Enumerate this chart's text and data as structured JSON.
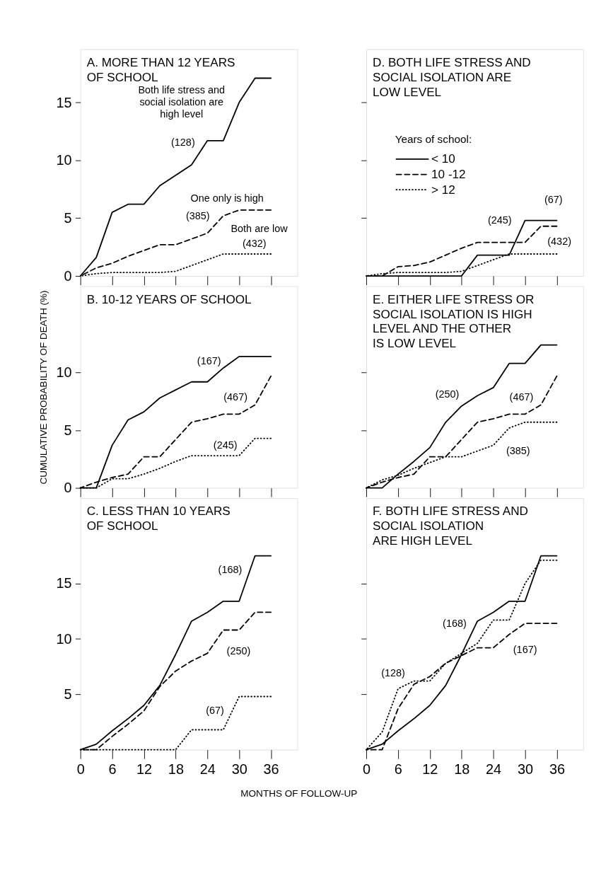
{
  "chart_data": [
    {
      "type": "line",
      "title": "A. MORE THAN 12 YEARS\nOF SCHOOL",
      "x": [
        0,
        3,
        6,
        9,
        12,
        15,
        18,
        21,
        24,
        27,
        30,
        33,
        36
      ],
      "xlim": [
        0,
        41
      ],
      "xticks": [
        0,
        6,
        12,
        18,
        24,
        30,
        36
      ],
      "ylim": [
        0,
        19.6
      ],
      "yticks": [
        0,
        5,
        10,
        15
      ],
      "tick_labels": "y",
      "grid": false,
      "marker": "none",
      "series": [
        {
          "color": "#000000",
          "line_style": "solid",
          "values": [
            0,
            1.6,
            5.5,
            6.2,
            6.2,
            7.8,
            8.7,
            9.6,
            11.7,
            11.7,
            15.0,
            17.1,
            17.1
          ]
        },
        {
          "color": "#000000",
          "line_style": "dashed",
          "values": [
            0,
            0.7,
            1.1,
            1.7,
            2.2,
            2.7,
            2.7,
            3.2,
            3.7,
            5.2,
            5.7,
            5.7,
            5.7
          ]
        },
        {
          "color": "#000000",
          "line_style": "dotted",
          "values": [
            0,
            0.2,
            0.3,
            0.3,
            0.3,
            0.3,
            0.4,
            0.9,
            1.4,
            1.9,
            1.9,
            1.9,
            1.9
          ]
        }
      ],
      "annotations": [
        "Both life stress and\nsocial isolation are\nhigh level",
        "(128)",
        "One only is high",
        "(385)",
        "Both are low",
        "(432)"
      ]
    },
    {
      "type": "line",
      "title": "B. 10-12 YEARS OF SCHOOL",
      "ylabel": "CUMULATIVE PROBABILITY OF DEATH (%)",
      "x": [
        0,
        3,
        6,
        9,
        12,
        15,
        18,
        21,
        24,
        27,
        30,
        33,
        36
      ],
      "xlim": [
        0,
        41
      ],
      "xticks": [
        0,
        6,
        12,
        18,
        24,
        30,
        36
      ],
      "ylim": [
        0,
        17.5
      ],
      "yticks": [
        0,
        5,
        10
      ],
      "tick_labels": "y",
      "grid": false,
      "marker": "none",
      "series": [
        {
          "color": "#000000",
          "line_style": "solid",
          "values": [
            0,
            0,
            3.7,
            5.9,
            6.6,
            7.8,
            8.5,
            9.2,
            9.2,
            10.4,
            11.4,
            11.4,
            11.4
          ]
        },
        {
          "color": "#000000",
          "line_style": "dashed",
          "values": [
            0,
            0.5,
            0.9,
            1.2,
            2.7,
            2.7,
            4.2,
            5.7,
            6.0,
            6.4,
            6.4,
            7.2,
            9.7
          ]
        },
        {
          "color": "#000000",
          "line_style": "dotted",
          "values": [
            0,
            0,
            0.8,
            0.8,
            1.2,
            1.7,
            2.3,
            2.8,
            2.8,
            2.8,
            2.8,
            4.3,
            4.3
          ]
        }
      ],
      "annotations": [
        "(167)",
        "(467)",
        "(245)"
      ]
    },
    {
      "type": "line",
      "title": "C. LESS THAN 10 YEARS\nOF SCHOOL",
      "xlabel": "MONTHS OF FOLLOW-UP",
      "x": [
        0,
        3,
        6,
        9,
        12,
        15,
        18,
        21,
        24,
        27,
        30,
        33,
        36
      ],
      "xlim": [
        0,
        41
      ],
      "xticks": [
        0,
        6,
        12,
        18,
        24,
        30,
        36
      ],
      "ylim": [
        0,
        22.7
      ],
      "yticks": [
        5,
        10,
        15
      ],
      "grid": false,
      "marker": "none",
      "series": [
        {
          "color": "#000000",
          "line_style": "solid",
          "values": [
            0,
            0.5,
            1.7,
            2.8,
            4.0,
            5.8,
            8.6,
            11.6,
            12.4,
            13.4,
            13.4,
            17.5,
            17.5
          ]
        },
        {
          "color": "#000000",
          "line_style": "dashed",
          "values": [
            0,
            0,
            1.2,
            2.3,
            3.5,
            5.7,
            7.1,
            8.0,
            8.7,
            10.8,
            10.8,
            12.4,
            12.4
          ]
        },
        {
          "color": "#000000",
          "line_style": "dotted",
          "values": [
            0,
            0,
            0,
            0,
            0,
            0,
            0,
            1.8,
            1.8,
            1.8,
            4.8,
            4.8,
            4.8
          ]
        }
      ],
      "annotations": [
        "(168)",
        "(250)",
        "(67)"
      ]
    },
    {
      "type": "line",
      "title": "D. BOTH LIFE STRESS AND\nSOCIAL ISOLATION ARE\nLOW LEVEL",
      "legend_title": "Years of school:",
      "legend": "left",
      "x": [
        0,
        3,
        6,
        9,
        12,
        15,
        18,
        21,
        24,
        27,
        30,
        33,
        36
      ],
      "xlim": [
        0,
        41
      ],
      "xticks": [
        0,
        6,
        12,
        18,
        24,
        30,
        36
      ],
      "ylim": [
        0,
        19.6
      ],
      "yticks": [
        5,
        10,
        15
      ],
      "tick_labels": false,
      "grid": false,
      "marker": "none",
      "series": [
        {
          "name": "< 10",
          "color": "#000000",
          "line_style": "solid",
          "values": [
            0,
            0,
            0,
            0,
            0,
            0,
            0,
            1.8,
            1.8,
            1.8,
            4.8,
            4.8,
            4.8
          ]
        },
        {
          "name": "10 -12",
          "color": "#000000",
          "line_style": "dashed",
          "values": [
            0,
            0,
            0.8,
            0.9,
            1.2,
            1.8,
            2.4,
            2.9,
            2.9,
            2.9,
            2.9,
            4.3,
            4.3
          ]
        },
        {
          "name": "> 12",
          "color": "#000000",
          "line_style": "dotted",
          "values": [
            0,
            0.2,
            0.3,
            0.3,
            0.3,
            0.3,
            0.4,
            0.9,
            1.4,
            1.9,
            1.9,
            1.9,
            1.9
          ]
        }
      ],
      "annotations": [
        "(245)",
        "(67)",
        "(432)"
      ]
    },
    {
      "type": "line",
      "title": "E. EITHER LIFE STRESS OR\nSOCIAL ISOLATION IS HIGH\nLEVEL AND THE OTHER\nIS LOW LEVEL",
      "x": [
        0,
        3,
        6,
        9,
        12,
        15,
        18,
        21,
        24,
        27,
        30,
        33,
        36
      ],
      "xlim": [
        0,
        41
      ],
      "xticks": [
        0,
        6,
        12,
        18,
        24,
        30,
        36
      ],
      "ylim": [
        0,
        17.5
      ],
      "yticks": [
        5,
        10
      ],
      "tick_labels": false,
      "grid": false,
      "marker": "none",
      "series": [
        {
          "color": "#000000",
          "line_style": "solid",
          "values": [
            0,
            0,
            1.2,
            2.3,
            3.5,
            5.7,
            7.1,
            8.0,
            8.7,
            10.8,
            10.8,
            12.4,
            12.4
          ]
        },
        {
          "color": "#000000",
          "line_style": "dashed",
          "values": [
            0,
            0.5,
            0.9,
            1.2,
            2.7,
            2.7,
            4.2,
            5.7,
            6.0,
            6.4,
            6.4,
            7.2,
            9.7
          ]
        },
        {
          "color": "#000000",
          "line_style": "dotted",
          "values": [
            0,
            0.7,
            1.1,
            1.7,
            2.2,
            2.7,
            2.7,
            3.2,
            3.7,
            5.2,
            5.7,
            5.7,
            5.7
          ]
        }
      ],
      "annotations": [
        "(250)",
        "(467)",
        "(385)"
      ]
    },
    {
      "type": "line",
      "title": "F. BOTH LIFE STRESS AND\nSOCIAL ISOLATION\nARE HIGH LEVEL",
      "x": [
        0,
        3,
        6,
        9,
        12,
        15,
        18,
        21,
        24,
        27,
        30,
        33,
        36
      ],
      "xlim": [
        0,
        41
      ],
      "xticks": [
        0,
        6,
        12,
        18,
        24,
        30,
        36
      ],
      "ylim": [
        0,
        22.7
      ],
      "yticks": [
        5,
        10,
        15
      ],
      "tick_labels": "x",
      "grid": false,
      "marker": "none",
      "series": [
        {
          "color": "#000000",
          "line_style": "solid",
          "values": [
            0,
            0.5,
            1.7,
            2.8,
            4.0,
            5.8,
            8.6,
            11.6,
            12.4,
            13.4,
            13.4,
            17.5,
            17.5
          ]
        },
        {
          "color": "#000000",
          "line_style": "dashed",
          "values": [
            0,
            0,
            3.7,
            5.9,
            6.6,
            7.8,
            8.5,
            9.2,
            9.2,
            10.4,
            11.4,
            11.4,
            11.4
          ]
        },
        {
          "color": "#000000",
          "line_style": "dotted",
          "values": [
            0,
            1.6,
            5.5,
            6.2,
            6.2,
            7.8,
            8.7,
            9.6,
            11.7,
            11.7,
            15.0,
            17.1,
            17.1
          ]
        }
      ],
      "annotations": [
        "(168)",
        "(167)",
        "(128)"
      ]
    }
  ]
}
